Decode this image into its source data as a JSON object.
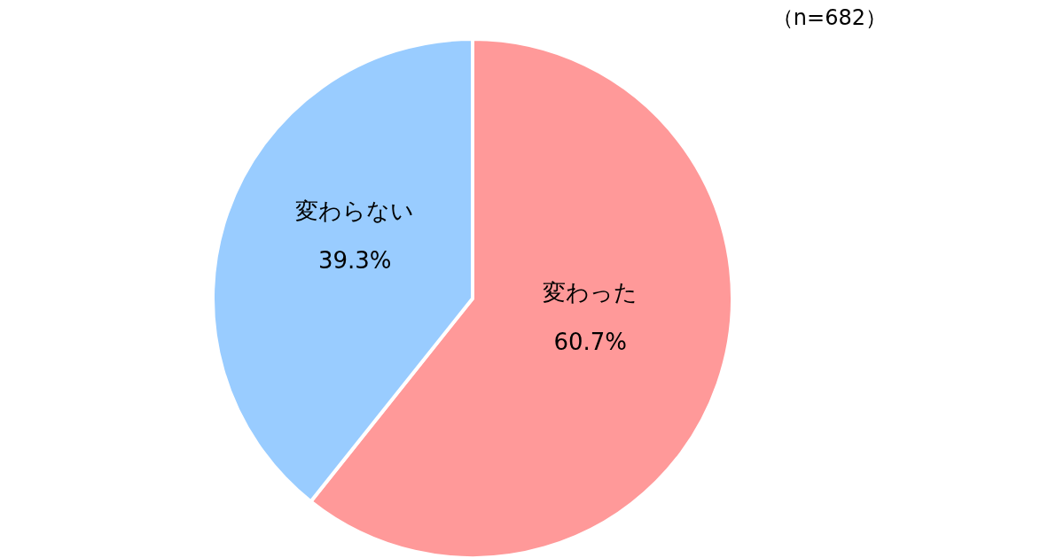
{
  "chart_data": {
    "type": "pie",
    "categories": [
      "変わった",
      "変わらない"
    ],
    "values": [
      60.7,
      39.3
    ],
    "value_labels": [
      "60.7%",
      "39.3%"
    ],
    "colors": [
      "#ff9999",
      "#99ccff"
    ],
    "annotations": [
      "（n=682）"
    ]
  }
}
